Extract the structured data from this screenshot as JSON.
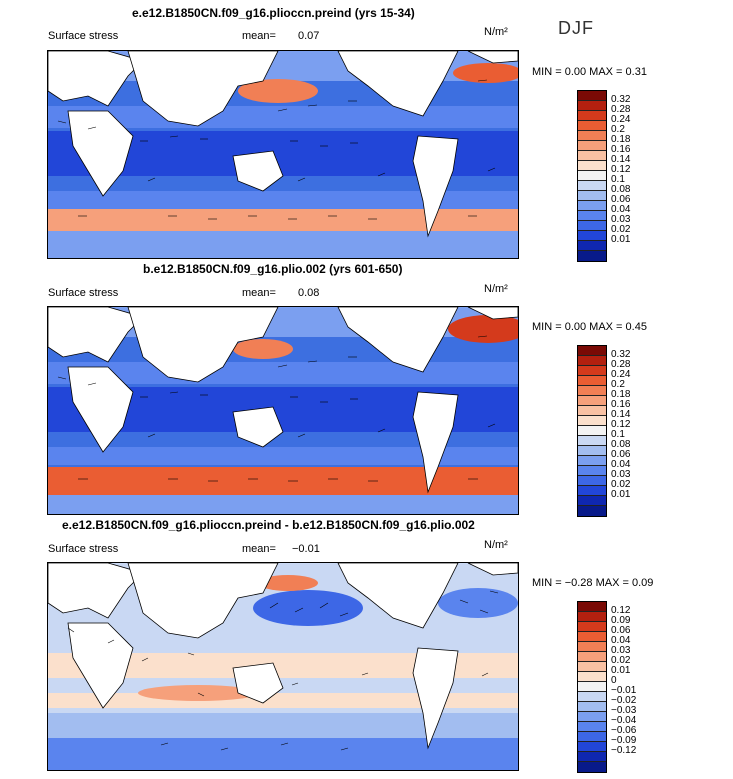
{
  "season": "DJF",
  "units": "N/m²",
  "panels": [
    {
      "title": "e.e12.B1850CN.f09_g16.plioccn.preind (yrs 15-34)",
      "variable": "Surface stress",
      "mean_label": "mean=",
      "mean_value": "0.07",
      "minmax": "MIN =    0.00 MAX =    0.31",
      "colorbar_ticks": [
        "0.32",
        "0.28",
        "0.24",
        "0.2",
        "0.18",
        "0.16",
        "0.14",
        "0.12",
        "0.1",
        "0.08",
        "0.06",
        "0.04",
        "0.03",
        "0.02",
        "0.01"
      ],
      "palette": "abs"
    },
    {
      "title": "b.e12.B1850CN.f09_g16.plio.002 (yrs 601-650)",
      "variable": "Surface stress",
      "mean_label": "mean=",
      "mean_value": "0.08",
      "minmax": "MIN =    0.00 MAX =    0.45",
      "colorbar_ticks": [
        "0.32",
        "0.28",
        "0.24",
        "0.2",
        "0.18",
        "0.16",
        "0.14",
        "0.12",
        "0.1",
        "0.08",
        "0.06",
        "0.04",
        "0.03",
        "0.02",
        "0.01"
      ],
      "palette": "abs"
    },
    {
      "title": "e.e12.B1850CN.f09_g16.plioccn.preind - b.e12.B1850CN.f09_g16.plio.002",
      "variable": "Surface stress",
      "mean_label": "mean=",
      "mean_value": "−0.01",
      "minmax": "MIN =  −0.28 MAX =    0.09",
      "colorbar_ticks": [
        "0.12",
        "0.09",
        "0.06",
        "0.04",
        "0.03",
        "0.02",
        "0.01",
        "0",
        "−0.01",
        "−0.02",
        "−0.03",
        "−0.04",
        "−0.06",
        "−0.09",
        "−0.12"
      ],
      "palette": "diff"
    }
  ],
  "colors": {
    "abs": [
      "#7a0a05",
      "#b3200f",
      "#d43a1c",
      "#ea5d33",
      "#f17f55",
      "#f6a07b",
      "#f9c1a3",
      "#fbe0cc",
      "#f3f3f3",
      "#c9d8f3",
      "#a2bdf0",
      "#7b9ff0",
      "#5a84ee",
      "#3d67e6",
      "#2246d8",
      "#0f27b0",
      "#081a8a"
    ],
    "diff": [
      "#7a0a05",
      "#b3200f",
      "#d43a1c",
      "#ea5d33",
      "#f17f55",
      "#f6a07b",
      "#f9c1a3",
      "#fbe0cc",
      "#f3f3f3",
      "#c9d8f3",
      "#a2bdf0",
      "#7b9ff0",
      "#5a84ee",
      "#3d67e6",
      "#2246d8",
      "#0f27b0",
      "#081a8a"
    ]
  }
}
